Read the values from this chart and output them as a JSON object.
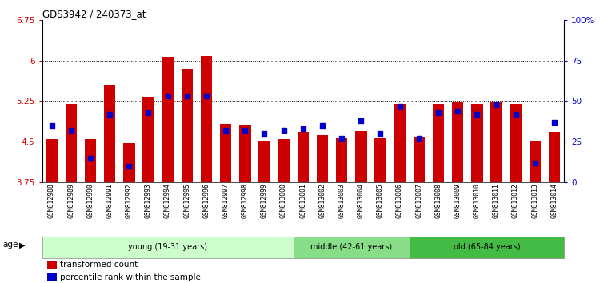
{
  "title": "GDS3942 / 240373_at",
  "samples": [
    "GSM812988",
    "GSM812989",
    "GSM812990",
    "GSM812991",
    "GSM812992",
    "GSM812993",
    "GSM812994",
    "GSM812995",
    "GSM812996",
    "GSM812997",
    "GSM812998",
    "GSM812999",
    "GSM813000",
    "GSM813001",
    "GSM813002",
    "GSM813003",
    "GSM813004",
    "GSM813005",
    "GSM813006",
    "GSM813007",
    "GSM813008",
    "GSM813009",
    "GSM813010",
    "GSM813011",
    "GSM813012",
    "GSM813013",
    "GSM813014"
  ],
  "transformed_count": [
    4.55,
    5.2,
    4.55,
    5.55,
    4.47,
    5.33,
    6.07,
    5.85,
    6.08,
    4.83,
    4.82,
    4.52,
    4.55,
    4.68,
    4.62,
    4.58,
    4.7,
    4.58,
    5.2,
    4.6,
    5.2,
    5.22,
    5.2,
    5.22,
    5.2,
    4.52,
    4.68
  ],
  "percentile_rank": [
    35,
    32,
    15,
    42,
    10,
    43,
    53,
    53,
    53,
    32,
    32,
    30,
    32,
    33,
    35,
    27,
    38,
    30,
    47,
    27,
    43,
    44,
    42,
    48,
    42,
    12,
    37
  ],
  "groups": [
    {
      "label": "young (19-31 years)",
      "start": 0,
      "end": 13,
      "color": "#ccffcc"
    },
    {
      "label": "middle (42-61 years)",
      "start": 13,
      "end": 19,
      "color": "#88dd88"
    },
    {
      "label": "old (65-84 years)",
      "start": 19,
      "end": 27,
      "color": "#44bb44"
    }
  ],
  "ylim_left": [
    3.75,
    6.75
  ],
  "ylim_right": [
    0,
    100
  ],
  "yticks_left": [
    3.75,
    4.5,
    5.25,
    6.0,
    6.75
  ],
  "ytick_labels_left": [
    "3.75",
    "4.5",
    "5.25",
    "6",
    "6.75"
  ],
  "yticks_right": [
    0,
    25,
    50,
    75,
    100
  ],
  "ytick_labels_right": [
    "0",
    "25",
    "50",
    "75",
    "100%"
  ],
  "hlines": [
    4.5,
    5.25,
    6.0
  ],
  "bar_color": "#cc0000",
  "dot_color": "#0000cc",
  "background_color": "#ffffff",
  "tick_bg_color": "#d0d0d0",
  "age_label": "age"
}
